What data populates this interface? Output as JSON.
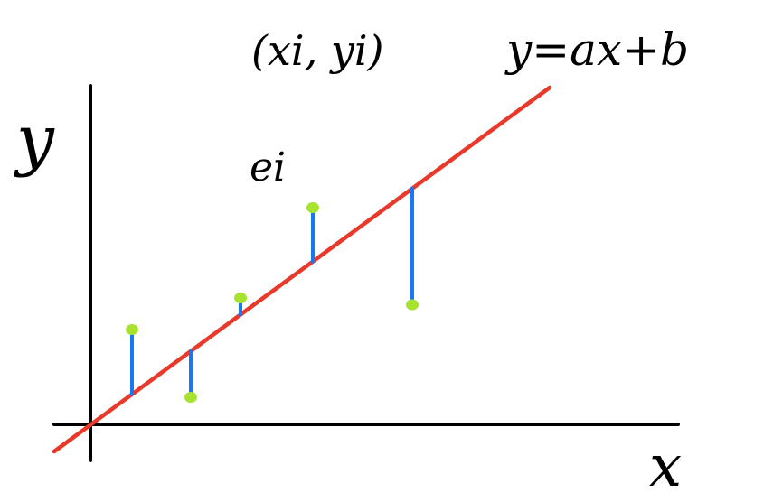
{
  "labels": {
    "y_axis": "y",
    "x_axis": "x",
    "point": "(xi, yi)",
    "error": "ei",
    "equation": "y=ax+b"
  },
  "colors": {
    "axes": "#000000",
    "regression_line": "#e8392b",
    "residuals": "#1877f2",
    "points": "#a6e22e"
  },
  "data_points": [
    {
      "x": 1,
      "y": 4.2
    },
    {
      "x": 2,
      "y": 1.2
    },
    {
      "x": 3,
      "y": 5.6
    },
    {
      "x": 4,
      "y": 9.6
    },
    {
      "x": 5,
      "y": 5.3
    }
  ]
}
